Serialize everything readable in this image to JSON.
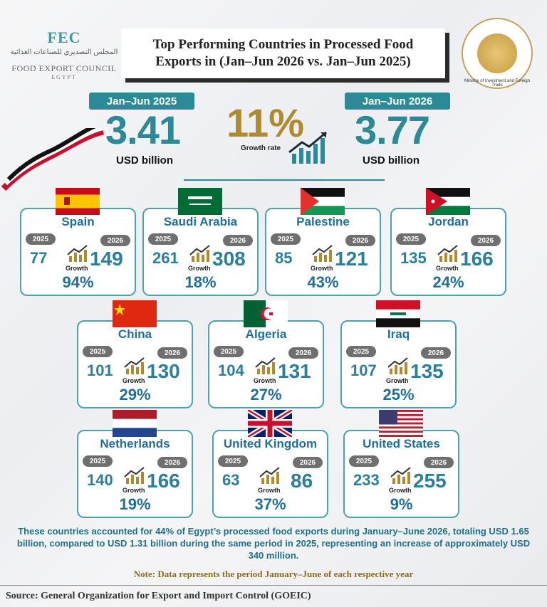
{
  "header": {
    "logo_mark": "FEC",
    "logo_arabic": "المجلس التصديري للصناعات الغذائية",
    "logo_name": "FOOD EXPORT COUNCIL",
    "logo_country": "EGYPT",
    "title_line1": "Top Performing Countries in Processed Food",
    "title_line2": "Exports in (Jan–Jun 2026 vs. Jan–Jun 2025)",
    "seal_text": "Ministry of Investment and Foreign Trade"
  },
  "kpis": {
    "left_label": "Jan–Jun 2025",
    "left_value": "3.41",
    "left_unit": "USD billion",
    "right_label": "Jan–Jun 2026",
    "right_value": "3.77",
    "right_unit": "USD billion",
    "growth_value": "11%",
    "growth_label": "Growth rate"
  },
  "labels": {
    "y2025": "2025",
    "y2026": "2026",
    "growth": "Growth"
  },
  "chart_data": {
    "type": "table",
    "title": "Top Performing Countries in Processed Food Exports in (Jan–Jun 2026 vs. Jan–Jun 2025)",
    "columns": [
      "2025",
      "2026",
      "Growth"
    ],
    "rows": [
      {
        "country": "Spain",
        "v2025": "77",
        "v2026": "149",
        "growth": "94%"
      },
      {
        "country": "Saudi Arabia",
        "v2025": "261",
        "v2026": "308",
        "growth": "18%"
      },
      {
        "country": "Palestine",
        "v2025": "85",
        "v2026": "121",
        "growth": "43%"
      },
      {
        "country": "Jordan",
        "v2025": "135",
        "v2026": "166",
        "growth": "24%"
      },
      {
        "country": "China",
        "v2025": "101",
        "v2026": "130",
        "growth": "29%"
      },
      {
        "country": "Algeria",
        "v2025": "104",
        "v2026": "131",
        "growth": "27%"
      },
      {
        "country": "Iraq",
        "v2025": "107",
        "v2026": "135",
        "growth": "25%"
      },
      {
        "country": "Netherlands",
        "v2025": "140",
        "v2026": "166",
        "growth": "19%"
      },
      {
        "country": "United Kingdom",
        "v2025": "63",
        "v2026": "86",
        "growth": "37%"
      },
      {
        "country": "United States",
        "v2025": "233",
        "v2026": "255",
        "growth": "9%"
      }
    ]
  },
  "footer": {
    "summary": "These countries accounted for 44% of Egypt’s processed food exports during January–June 2026, totaling USD 1.65 billion, compared to USD 1.31 billion during the same period in 2025, representing an increase of approximately USD 340 million.",
    "note": "Note: Data represents the period January–June of each respective year",
    "source": "Source: General Organization for Export and Import Control (GOEIC)"
  },
  "colors": {
    "teal": "#2b8a96",
    "gold": "#b08a2e",
    "country_blue": "#1f6f9a"
  }
}
